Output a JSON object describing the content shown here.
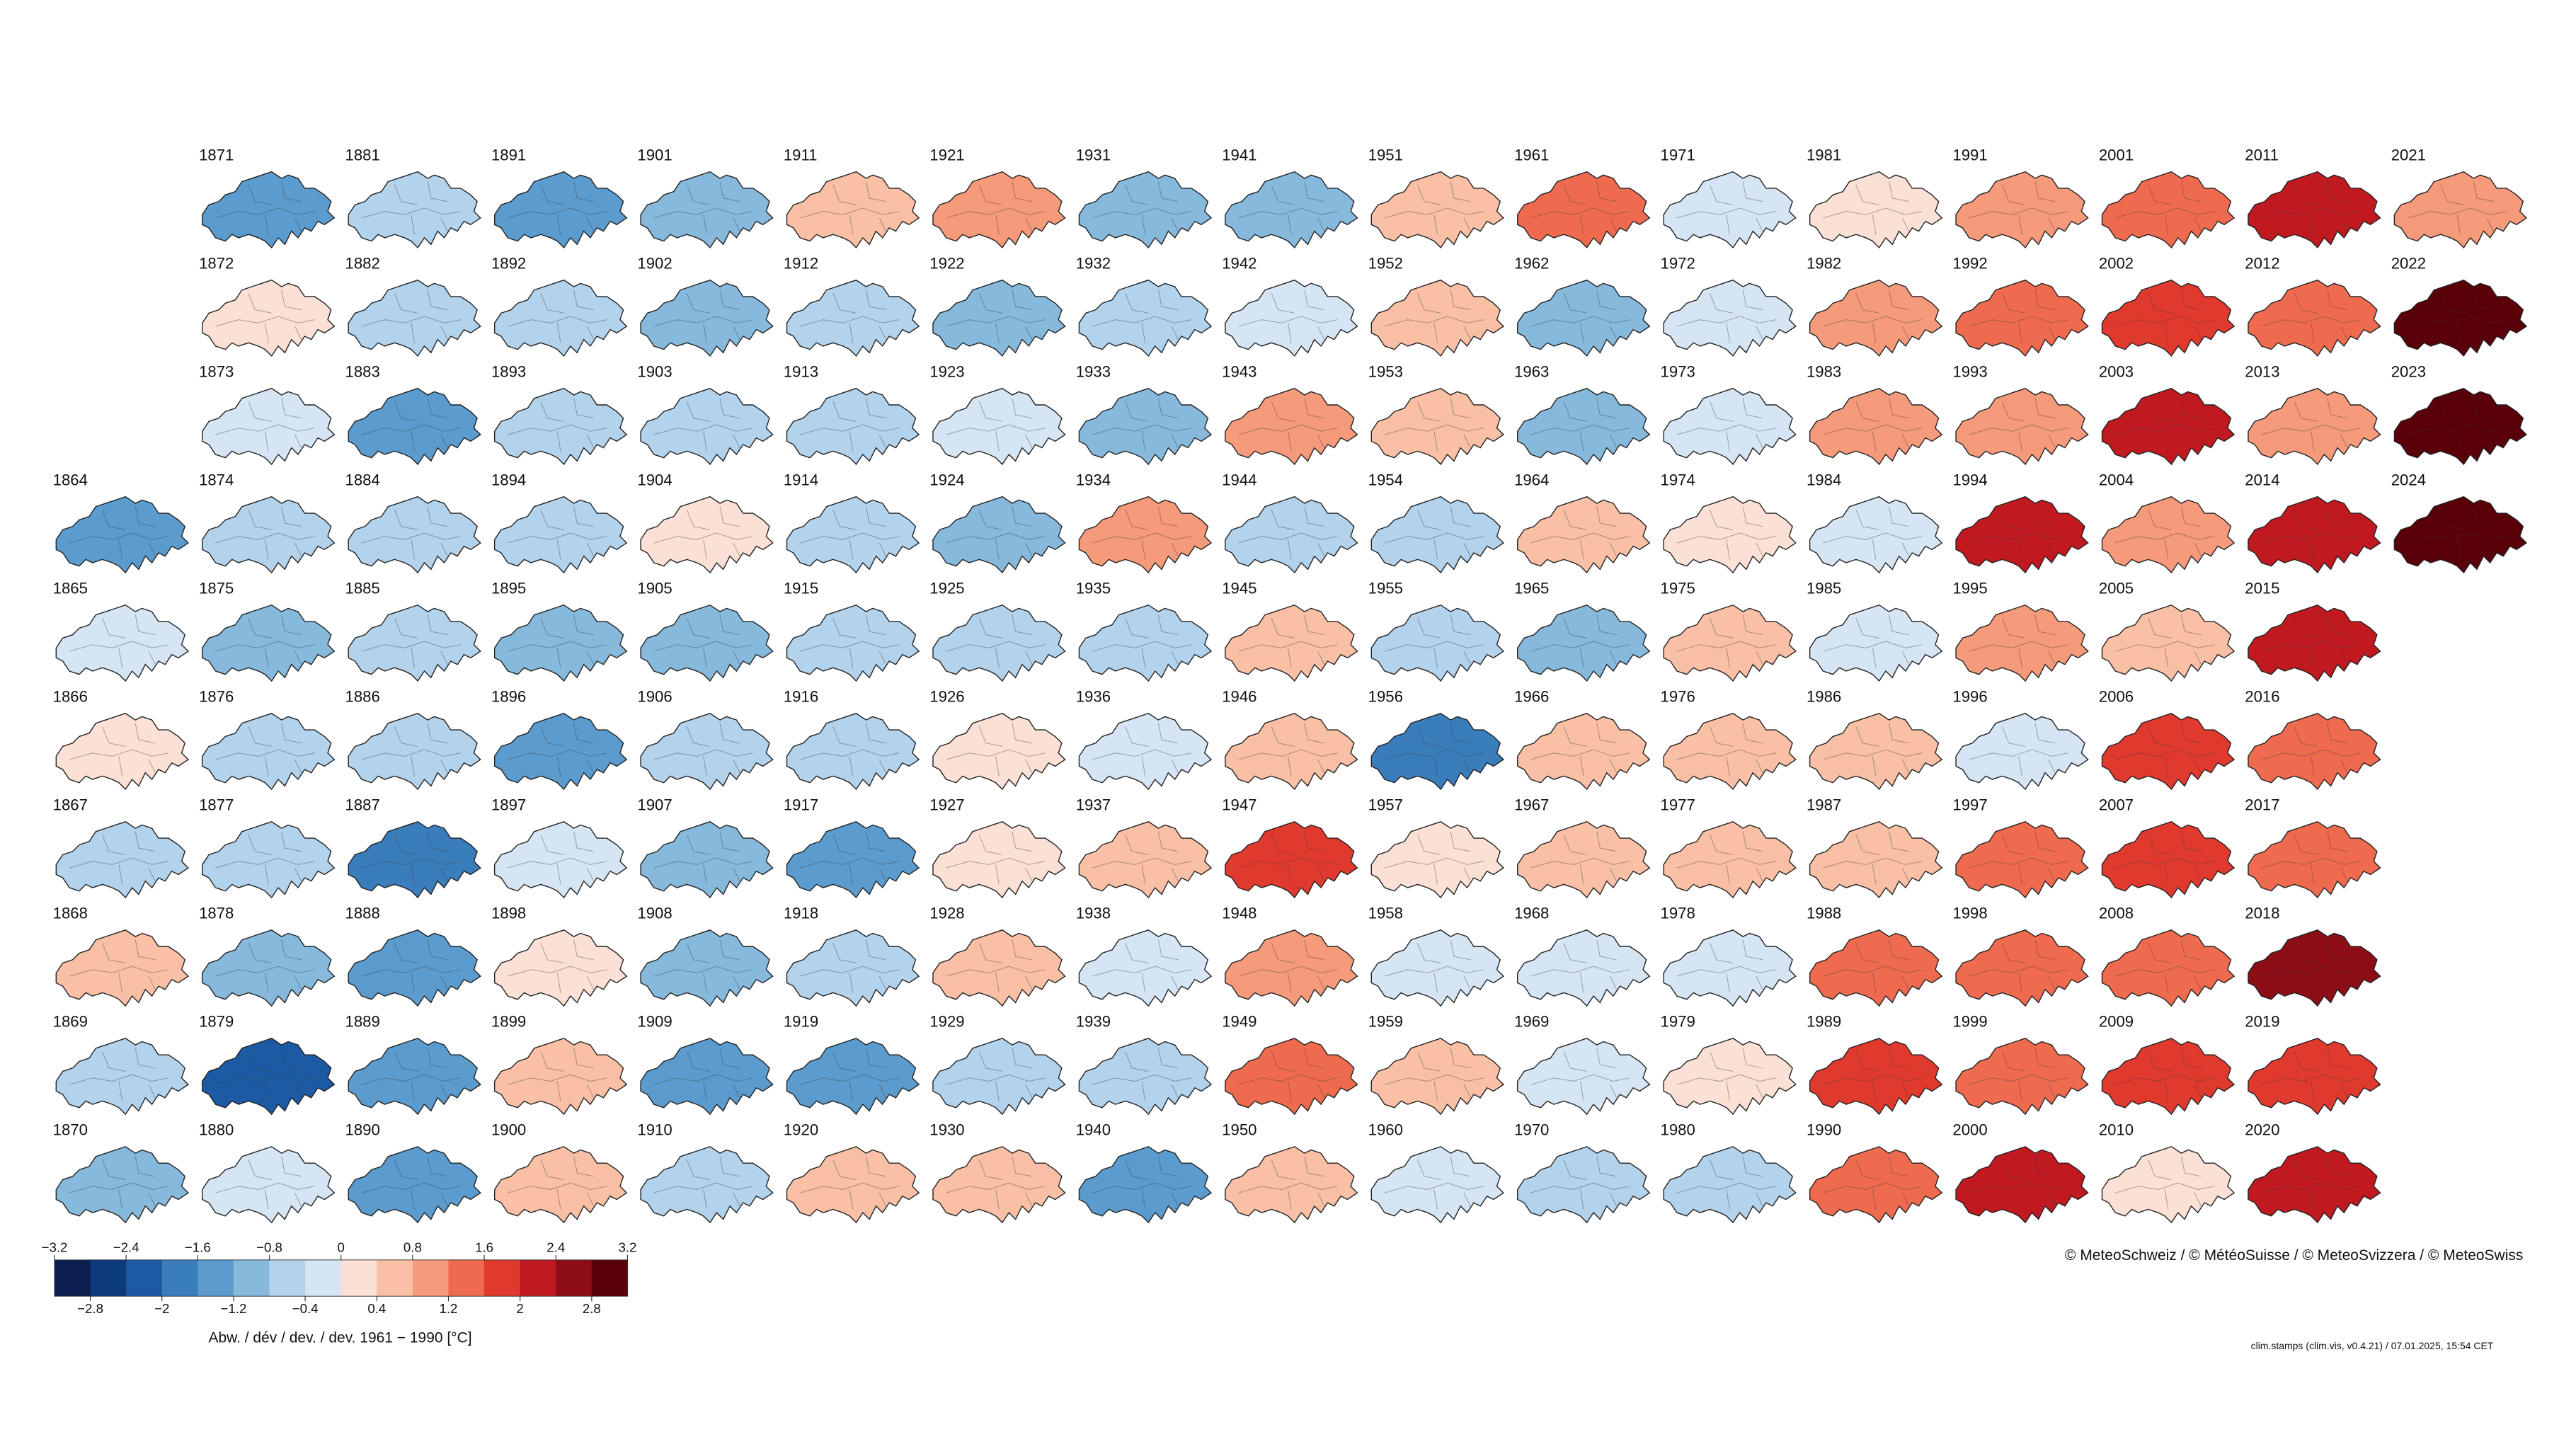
{
  "stamps": [
    {
      "year": "1864",
      "anomaly": -1.6
    },
    {
      "year": "1865",
      "anomaly": -0.4
    },
    {
      "year": "1866",
      "anomaly": 0.2
    },
    {
      "year": "1867",
      "anomaly": -0.8
    },
    {
      "year": "1868",
      "anomaly": 0.4
    },
    {
      "year": "1869",
      "anomaly": -0.8
    },
    {
      "year": "1870",
      "anomaly": -1.0
    },
    {
      "year": "1871",
      "anomaly": -1.6
    },
    {
      "year": "1872",
      "anomaly": 0.3
    },
    {
      "year": "1873",
      "anomaly": -0.4
    },
    {
      "year": "1874",
      "anomaly": -0.8
    },
    {
      "year": "1875",
      "anomaly": -1.0
    },
    {
      "year": "1876",
      "anomaly": -0.8
    },
    {
      "year": "1877",
      "anomaly": -0.8
    },
    {
      "year": "1878",
      "anomaly": -1.2
    },
    {
      "year": "1879",
      "anomaly": -2.2
    },
    {
      "year": "1880",
      "anomaly": -0.4
    },
    {
      "year": "1881",
      "anomaly": -0.6
    },
    {
      "year": "1882",
      "anomaly": -0.6
    },
    {
      "year": "1883",
      "anomaly": -1.4
    },
    {
      "year": "1884",
      "anomaly": -0.5
    },
    {
      "year": "1885",
      "anomaly": -0.8
    },
    {
      "year": "1886",
      "anomaly": -0.8
    },
    {
      "year": "1887",
      "anomaly": -1.8
    },
    {
      "year": "1888",
      "anomaly": -1.6
    },
    {
      "year": "1889",
      "anomaly": -1.6
    },
    {
      "year": "1890",
      "anomaly": -1.6
    },
    {
      "year": "1891",
      "anomaly": -1.6
    },
    {
      "year": "1892",
      "anomaly": -0.6
    },
    {
      "year": "1893",
      "anomaly": -0.7
    },
    {
      "year": "1894",
      "anomaly": -0.7
    },
    {
      "year": "1895",
      "anomaly": -1.0
    },
    {
      "year": "1896",
      "anomaly": -1.5
    },
    {
      "year": "1897",
      "anomaly": -0.4
    },
    {
      "year": "1898",
      "anomaly": 0.3
    },
    {
      "year": "1899",
      "anomaly": 0.4
    },
    {
      "year": "1900",
      "anomaly": 0.4
    },
    {
      "year": "1901",
      "anomaly": -1.2
    },
    {
      "year": "1902",
      "anomaly": -1.0
    },
    {
      "year": "1903",
      "anomaly": -0.8
    },
    {
      "year": "1904",
      "anomaly": 0.3
    },
    {
      "year": "1905",
      "anomaly": -1.2
    },
    {
      "year": "1906",
      "anomaly": -0.6
    },
    {
      "year": "1907",
      "anomaly": -1.0
    },
    {
      "year": "1908",
      "anomaly": -1.0
    },
    {
      "year": "1909",
      "anomaly": -1.4
    },
    {
      "year": "1910",
      "anomaly": -0.8
    },
    {
      "year": "1911",
      "anomaly": 0.4
    },
    {
      "year": "1912",
      "anomaly": -0.8
    },
    {
      "year": "1913",
      "anomaly": -0.6
    },
    {
      "year": "1914",
      "anomaly": -0.8
    },
    {
      "year": "1915",
      "anomaly": -0.6
    },
    {
      "year": "1916",
      "anomaly": -0.5
    },
    {
      "year": "1917",
      "anomaly": -1.6
    },
    {
      "year": "1918",
      "anomaly": -0.5
    },
    {
      "year": "1919",
      "anomaly": -1.4
    },
    {
      "year": "1920",
      "anomaly": 0.6
    },
    {
      "year": "1921",
      "anomaly": 0.9
    },
    {
      "year": "1922",
      "anomaly": -1.0
    },
    {
      "year": "1923",
      "anomaly": -0.4
    },
    {
      "year": "1924",
      "anomaly": -1.0
    },
    {
      "year": "1925",
      "anomaly": -0.6
    },
    {
      "year": "1926",
      "anomaly": 0.3
    },
    {
      "year": "1927",
      "anomaly": 0.3
    },
    {
      "year": "1928",
      "anomaly": 0.6
    },
    {
      "year": "1929",
      "anomaly": -0.6
    },
    {
      "year": "1930",
      "anomaly": 0.6
    },
    {
      "year": "1931",
      "anomaly": -1.0
    },
    {
      "year": "1932",
      "anomaly": -0.5
    },
    {
      "year": "1933",
      "anomaly": -1.0
    },
    {
      "year": "1934",
      "anomaly": 1.0
    },
    {
      "year": "1935",
      "anomaly": -0.6
    },
    {
      "year": "1936",
      "anomaly": -0.4
    },
    {
      "year": "1937",
      "anomaly": 0.5
    },
    {
      "year": "1938",
      "anomaly": -0.4
    },
    {
      "year": "1939",
      "anomaly": -0.5
    },
    {
      "year": "1940",
      "anomaly": -1.4
    },
    {
      "year": "1941",
      "anomaly": -1.0
    },
    {
      "year": "1942",
      "anomaly": -0.4
    },
    {
      "year": "1943",
      "anomaly": 1.0
    },
    {
      "year": "1944",
      "anomaly": -0.6
    },
    {
      "year": "1945",
      "anomaly": 0.5
    },
    {
      "year": "1946",
      "anomaly": 0.5
    },
    {
      "year": "1947",
      "anomaly": 1.6
    },
    {
      "year": "1948",
      "anomaly": 1.0
    },
    {
      "year": "1949",
      "anomaly": 1.2
    },
    {
      "year": "1950",
      "anomaly": 0.7
    },
    {
      "year": "1951",
      "anomaly": 0.4
    },
    {
      "year": "1952",
      "anomaly": 0.4
    },
    {
      "year": "1953",
      "anomaly": 0.6
    },
    {
      "year": "1954",
      "anomaly": -0.6
    },
    {
      "year": "1955",
      "anomaly": -0.6
    },
    {
      "year": "1956",
      "anomaly": -2.0
    },
    {
      "year": "1957",
      "anomaly": 0.3
    },
    {
      "year": "1958",
      "anomaly": -0.4
    },
    {
      "year": "1959",
      "anomaly": 0.6
    },
    {
      "year": "1960",
      "anomaly": -0.3
    },
    {
      "year": "1961",
      "anomaly": 1.4
    },
    {
      "year": "1962",
      "anomaly": -1.0
    },
    {
      "year": "1963",
      "anomaly": -1.2
    },
    {
      "year": "1964",
      "anomaly": 0.6
    },
    {
      "year": "1965",
      "anomaly": -1.0
    },
    {
      "year": "1966",
      "anomaly": 0.4
    },
    {
      "year": "1967",
      "anomaly": 0.5
    },
    {
      "year": "1968",
      "anomaly": -0.4
    },
    {
      "year": "1969",
      "anomaly": -0.4
    },
    {
      "year": "1970",
      "anomaly": -0.5
    },
    {
      "year": "1971",
      "anomaly": -0.3
    },
    {
      "year": "1972",
      "anomaly": -0.4
    },
    {
      "year": "1973",
      "anomaly": -0.4
    },
    {
      "year": "1974",
      "anomaly": 0.3
    },
    {
      "year": "1975",
      "anomaly": 0.5
    },
    {
      "year": "1976",
      "anomaly": 0.5
    },
    {
      "year": "1977",
      "anomaly": 0.5
    },
    {
      "year": "1978",
      "anomaly": -0.4
    },
    {
      "year": "1979",
      "anomaly": 0.3
    },
    {
      "year": "1980",
      "anomaly": -0.6
    },
    {
      "year": "1981",
      "anomaly": 0.3
    },
    {
      "year": "1982",
      "anomaly": 1.0
    },
    {
      "year": "1983",
      "anomaly": 1.0
    },
    {
      "year": "1984",
      "anomaly": -0.4
    },
    {
      "year": "1985",
      "anomaly": -0.4
    },
    {
      "year": "1986",
      "anomaly": 0.4
    },
    {
      "year": "1987",
      "anomaly": 0.5
    },
    {
      "year": "1988",
      "anomaly": 1.2
    },
    {
      "year": "1989",
      "anomaly": 1.6
    },
    {
      "year": "1990",
      "anomaly": 1.4
    },
    {
      "year": "1991",
      "anomaly": 0.8
    },
    {
      "year": "1992",
      "anomaly": 1.4
    },
    {
      "year": "1993",
      "anomaly": 1.0
    },
    {
      "year": "1994",
      "anomaly": 2.2
    },
    {
      "year": "1995",
      "anomaly": 1.0
    },
    {
      "year": "1996",
      "anomaly": -0.3
    },
    {
      "year": "1997",
      "anomaly": 1.4
    },
    {
      "year": "1998",
      "anomaly": 1.3
    },
    {
      "year": "1999",
      "anomaly": 1.2
    },
    {
      "year": "2000",
      "anomaly": 2.2
    },
    {
      "year": "2001",
      "anomaly": 1.2
    },
    {
      "year": "2002",
      "anomaly": 1.6
    },
    {
      "year": "2003",
      "anomaly": 2.0
    },
    {
      "year": "2004",
      "anomaly": 1.0
    },
    {
      "year": "2005",
      "anomaly": 0.6
    },
    {
      "year": "2006",
      "anomaly": 1.6
    },
    {
      "year": "2007",
      "anomaly": 1.6
    },
    {
      "year": "2008",
      "anomaly": 1.3
    },
    {
      "year": "2009",
      "anomaly": 1.6
    },
    {
      "year": "2010",
      "anomaly": 0.3
    },
    {
      "year": "2011",
      "anomaly": 2.3
    },
    {
      "year": "2012",
      "anomaly": 1.4
    },
    {
      "year": "2013",
      "anomaly": 1.0
    },
    {
      "year": "2014",
      "anomaly": 2.2
    },
    {
      "year": "2015",
      "anomaly": 2.3
    },
    {
      "year": "2016",
      "anomaly": 1.4
    },
    {
      "year": "2017",
      "anomaly": 1.4
    },
    {
      "year": "2018",
      "anomaly": 2.6
    },
    {
      "year": "2019",
      "anomaly": 1.8
    },
    {
      "year": "2020",
      "anomaly": 2.4
    },
    {
      "year": "2021",
      "anomaly": 1.0
    },
    {
      "year": "2022",
      "anomaly": 2.9
    },
    {
      "year": "2023",
      "anomaly": 2.9
    },
    {
      "year": "2024",
      "anomaly": 2.8
    }
  ],
  "colorbar": {
    "colors": [
      "#0a1f4f",
      "#0d3a7a",
      "#1c5ba3",
      "#3a7dbb",
      "#5b9bcd",
      "#86b9dc",
      "#b3d2eb",
      "#d6e5f4",
      "#fbe0d5",
      "#f9c0a6",
      "#f59a7a",
      "#ef6b4f",
      "#e0392e",
      "#c0191f",
      "#8c0d16",
      "#5a0008"
    ],
    "top_ticks": [
      {
        "value": -3.2,
        "label": "−3.2"
      },
      {
        "value": -2.4,
        "label": "−2.4"
      },
      {
        "value": -1.6,
        "label": "−1.6"
      },
      {
        "value": -0.8,
        "label": "−0.8"
      },
      0,
      0.8,
      1.6,
      2.4,
      3.2
    ],
    "bottom_ticks": [
      {
        "value": -2.8,
        "label": "−2.8"
      },
      {
        "value": -2,
        "label": "−2"
      },
      {
        "value": -1.2,
        "label": "−1.2"
      },
      {
        "value": -0.4,
        "label": "−0.4"
      },
      0.4,
      1.2,
      2,
      2.8
    ],
    "label": "Abw. / dév / dev. / dev. 1961 − 1990 [°C]"
  },
  "copyright": "© MeteoSchweiz / © MétéoSuisse / © MeteoSvizzera / © MeteoSwiss",
  "footer": "clim.stamps (clim.vis, v0.4.21) / 07.01.2025, 15:54 CET"
}
